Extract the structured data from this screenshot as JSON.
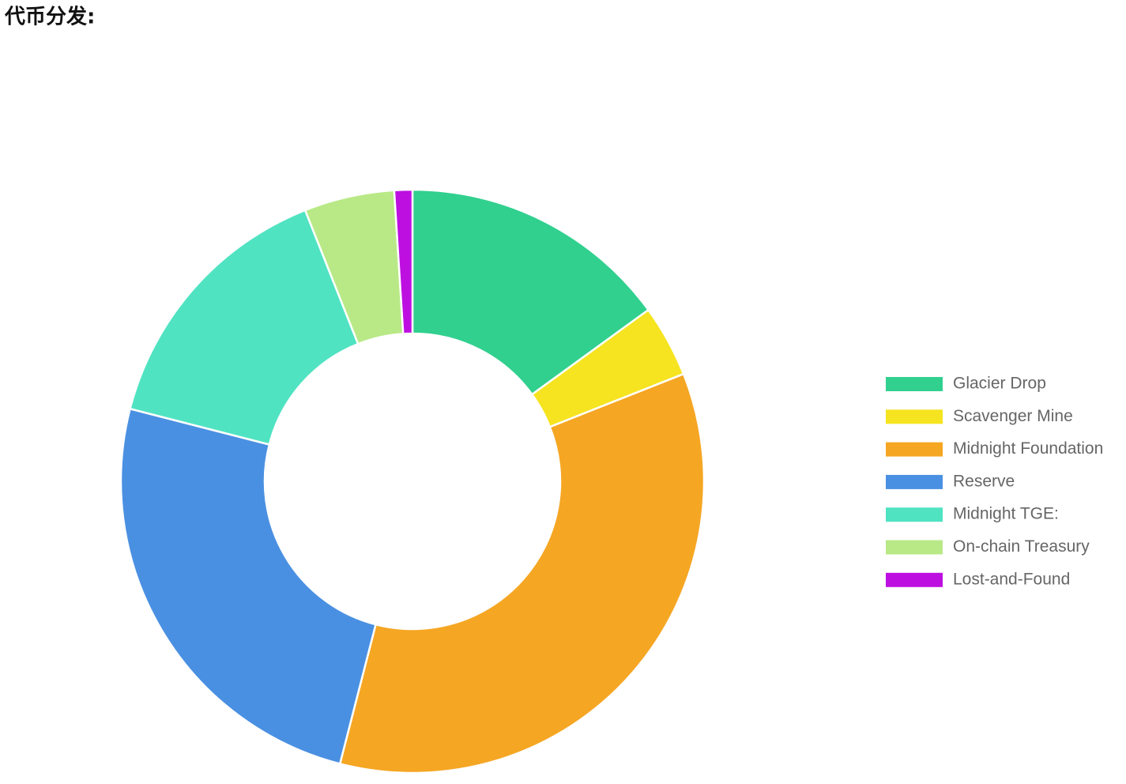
{
  "chart_data": {
    "type": "doughnut",
    "title": "代币分发:",
    "categories": [
      "Glacier Drop",
      "Scavenger Mine",
      "Midnight Foundation",
      "Reserve",
      "Midnight TGE:",
      "On-chain Treasury",
      "Lost-and-Found"
    ],
    "values": [
      15,
      4,
      35,
      25,
      15,
      5,
      1
    ],
    "colors": [
      "#31d08f",
      "#f5e41f",
      "#f5a623",
      "#4a90e2",
      "#50e3c2",
      "#b8e986",
      "#bd10e0"
    ],
    "legend": "right"
  }
}
